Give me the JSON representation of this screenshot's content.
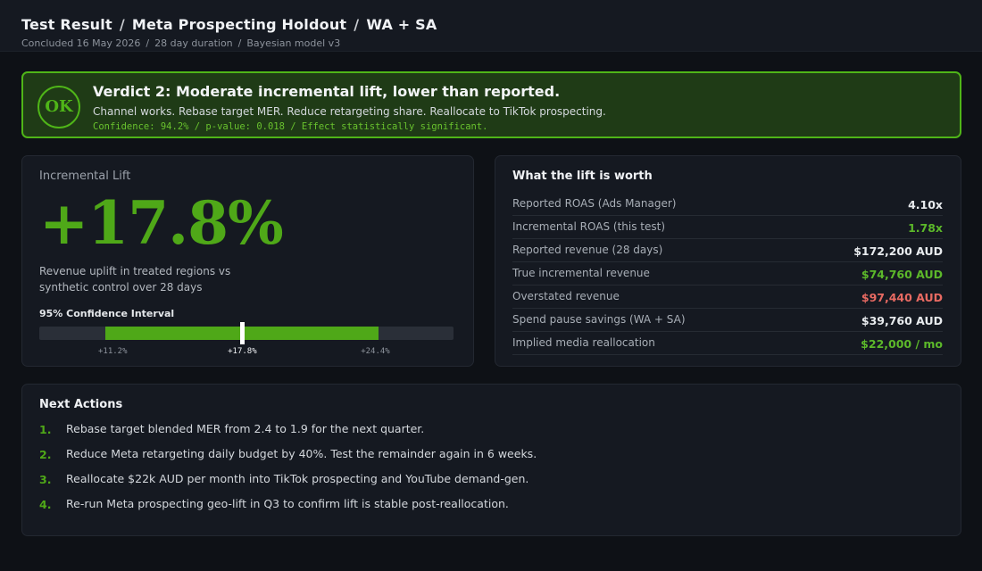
{
  "header": {
    "breadcrumb": [
      "Test Result",
      "Meta Prospecting Holdout",
      "WA + SA"
    ],
    "breadcrumb_separator": "/",
    "meta": [
      "Concluded 16 May 2026",
      "28 day duration",
      "Bayesian model v3"
    ],
    "meta_separator": "/"
  },
  "verdict": {
    "badge": "OK",
    "title": "Verdict 2: Moderate incremental lift, lower than reported.",
    "description": "Channel works. Rebase target MER. Reduce retargeting share. Reallocate to TikTok prospecting.",
    "stats": "Confidence: 94.2% / p-value: 0.018 / Effect statistically significant.",
    "accent_color": "#4fb518"
  },
  "lift": {
    "label": "Incremental Lift",
    "value_text": "+17.8%",
    "description": "Revenue uplift in treated regions vs synthetic control over 28 days",
    "ci_label": "95% Confidence Interval",
    "ci": {
      "scale_min": 8.0,
      "scale_max": 28.0,
      "low": 11.2,
      "point": 17.8,
      "high": 24.4,
      "low_label": "+11.2%",
      "point_label": "+17.8%",
      "high_label": "+24.4%"
    },
    "color": "#4fa818"
  },
  "worth": {
    "title": "What the lift is worth",
    "rows": [
      {
        "label": "Reported ROAS (Ads Manager)",
        "value": "4.10x",
        "tone": "neutral"
      },
      {
        "label": "Incremental ROAS (this test)",
        "value": "1.78x",
        "tone": "green"
      },
      {
        "label": "Reported revenue (28 days)",
        "value": "$172,200 AUD",
        "tone": "neutral"
      },
      {
        "label": "True incremental revenue",
        "value": "$74,760 AUD",
        "tone": "green"
      },
      {
        "label": "Overstated revenue",
        "value": "$97,440 AUD",
        "tone": "red"
      },
      {
        "label": "Spend pause savings (WA + SA)",
        "value": "$39,760 AUD",
        "tone": "neutral"
      },
      {
        "label": "Implied media reallocation",
        "value": "$22,000 / mo",
        "tone": "green"
      }
    ]
  },
  "actions": {
    "title": "Next Actions",
    "items": [
      {
        "num": "1.",
        "text": "Rebase target blended MER from 2.4 to 1.9 for the next quarter."
      },
      {
        "num": "2.",
        "text": "Reduce Meta retargeting daily budget by 40%. Test the remainder again in 6 weeks."
      },
      {
        "num": "3.",
        "text": "Reallocate $22k AUD per month into TikTok prospecting and YouTube demand-gen."
      },
      {
        "num": "4.",
        "text": "Re-run Meta prospecting geo-lift in Q3 to confirm lift is stable post-reallocation."
      }
    ]
  }
}
